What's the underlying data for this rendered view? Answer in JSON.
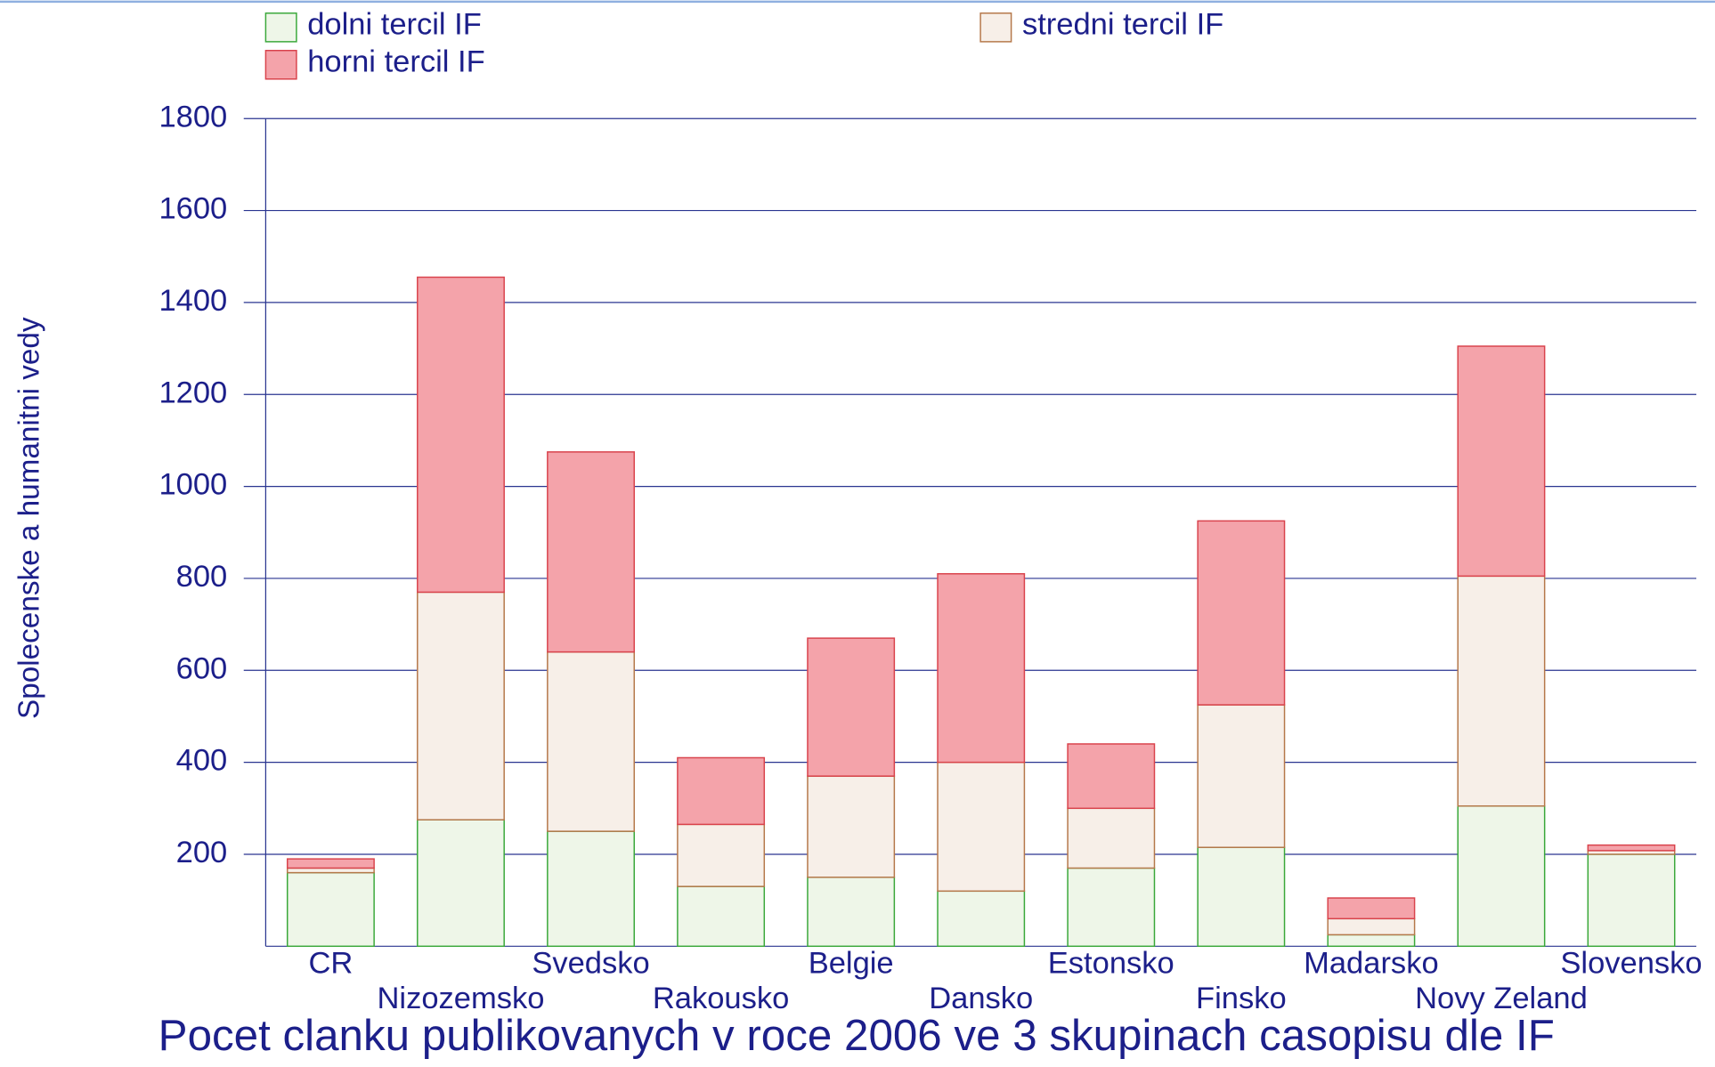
{
  "chart_data": {
    "type": "stacked_bar",
    "title": "Pocet clanku publikovanych v roce 2006 ve 3 skupinach casopisu dle IF",
    "y_label": "Spolecenske a humanitni vedy",
    "categories": [
      "CR",
      "Nizozemsko",
      "Svedsko",
      "Rakousko",
      "Belgie",
      "Dansko",
      "Estonsko",
      "Finsko",
      "Madarsko",
      "Novy Zeland",
      "Slovensko"
    ],
    "series": [
      {
        "name": "dolni tercil IF",
        "color": "#eef6e8",
        "stroke": "#3aa83a",
        "values": [
          160,
          275,
          250,
          130,
          150,
          120,
          170,
          215,
          25,
          305,
          200
        ]
      },
      {
        "name": "stredni tercil IF",
        "color": "#f7efe8",
        "stroke": "#b5784a",
        "values": [
          10,
          495,
          390,
          135,
          220,
          280,
          130,
          310,
          35,
          500,
          8
        ]
      },
      {
        "name": "horni tercil IF",
        "color": "#f4a3aa",
        "stroke": "#d9434c",
        "values": [
          20,
          685,
          435,
          145,
          300,
          410,
          140,
          400,
          45,
          500,
          12
        ]
      }
    ],
    "ylim": [
      0,
      1800
    ],
    "yticks": [
      200,
      400,
      600,
      800,
      1000,
      1200,
      1400,
      1600,
      1800
    ],
    "grid": true
  }
}
